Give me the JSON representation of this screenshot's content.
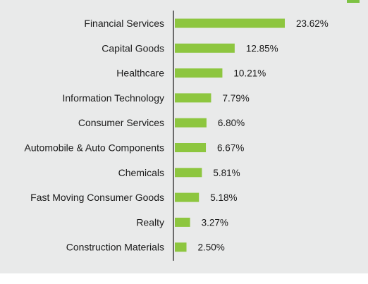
{
  "colors": {
    "bar": "#8dc63f",
    "axis": "#6b6b6b",
    "background": "#e9eaea"
  },
  "chart_data": {
    "type": "bar",
    "orientation": "horizontal",
    "categories": [
      "Financial Services",
      "Capital Goods",
      "Healthcare",
      "Information Technology",
      "Consumer Services",
      "Automobile & Auto Components",
      "Chemicals",
      "Fast Moving Consumer Goods",
      "Realty",
      "Construction Materials"
    ],
    "values": [
      23.62,
      12.85,
      10.21,
      7.79,
      6.8,
      6.67,
      5.81,
      5.18,
      3.27,
      2.5
    ],
    "value_labels": [
      "23.62%",
      "12.85%",
      "10.21%",
      "7.79%",
      "6.80%",
      "6.67%",
      "5.81%",
      "5.18%",
      "3.27%",
      "2.50%"
    ],
    "title": "",
    "xlabel": "",
    "ylabel": "",
    "xlim": [
      0,
      23.62
    ],
    "grid": false,
    "legend": "none"
  }
}
